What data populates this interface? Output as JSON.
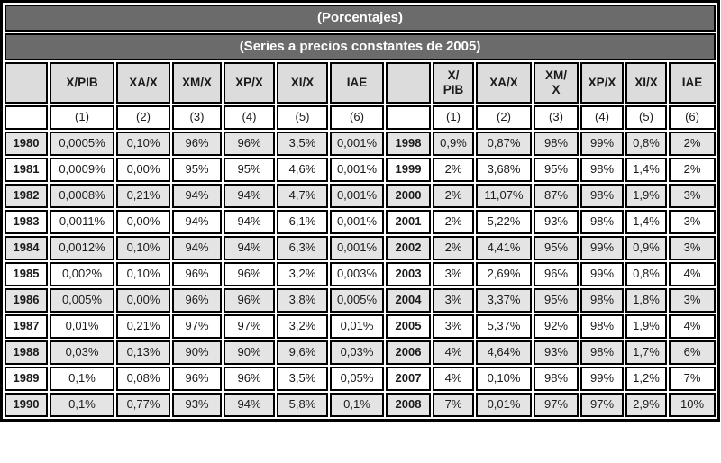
{
  "table": {
    "title_band_1": "(Porcentajes)",
    "title_band_2": "(Series a precios constantes de 2005)",
    "left_columns": [
      "X/PIB",
      "XA/X",
      "XM/X",
      "XP/X",
      "XI/X",
      "IAE"
    ],
    "right_columns": [
      "X/\nPIB",
      "XA/X",
      "XM/\nX",
      "XP/X",
      "XI/X",
      "IAE"
    ],
    "subheader": [
      "(1)",
      "(2)",
      "(3)",
      "(4)",
      "(5)",
      "(6)"
    ],
    "left_rows": [
      {
        "year": "1980",
        "values": [
          "0,0005%",
          "0,10%",
          "96%",
          "96%",
          "3,5%",
          "0,001%"
        ]
      },
      {
        "year": "1981",
        "values": [
          "0,0009%",
          "0,00%",
          "95%",
          "95%",
          "4,6%",
          "0,001%"
        ]
      },
      {
        "year": "1982",
        "values": [
          "0,0008%",
          "0,21%",
          "94%",
          "94%",
          "4,7%",
          "0,001%"
        ]
      },
      {
        "year": "1983",
        "values": [
          "0,0011%",
          "0,00%",
          "94%",
          "94%",
          "6,1%",
          "0,001%"
        ]
      },
      {
        "year": "1984",
        "values": [
          "0,0012%",
          "0,10%",
          "94%",
          "94%",
          "6,3%",
          "0,001%"
        ]
      },
      {
        "year": "1985",
        "values": [
          "0,002%",
          "0,10%",
          "96%",
          "96%",
          "3,2%",
          "0,003%"
        ]
      },
      {
        "year": "1986",
        "values": [
          "0,005%",
          "0,00%",
          "96%",
          "96%",
          "3,8%",
          "0,005%"
        ]
      },
      {
        "year": "1987",
        "values": [
          "0,01%",
          "0,21%",
          "97%",
          "97%",
          "3,2%",
          "0,01%"
        ]
      },
      {
        "year": "1988",
        "values": [
          "0,03%",
          "0,13%",
          "90%",
          "90%",
          "9,6%",
          "0,03%"
        ]
      },
      {
        "year": "1989",
        "values": [
          "0,1%",
          "0,08%",
          "96%",
          "96%",
          "3,5%",
          "0,05%"
        ]
      },
      {
        "year": "1990",
        "values": [
          "0,1%",
          "0,77%",
          "93%",
          "94%",
          "5,8%",
          "0,1%"
        ]
      }
    ],
    "right_rows": [
      {
        "year": "1998",
        "values": [
          "0,9%",
          "0,87%",
          "98%",
          "99%",
          "0,8%",
          "2%"
        ]
      },
      {
        "year": "1999",
        "values": [
          "2%",
          "3,68%",
          "95%",
          "98%",
          "1,4%",
          "2%"
        ]
      },
      {
        "year": "2000",
        "values": [
          "2%",
          "11,07%",
          "87%",
          "98%",
          "1,9%",
          "3%"
        ]
      },
      {
        "year": "2001",
        "values": [
          "2%",
          "5,22%",
          "93%",
          "98%",
          "1,4%",
          "3%"
        ]
      },
      {
        "year": "2002",
        "values": [
          "2%",
          "4,41%",
          "95%",
          "99%",
          "0,9%",
          "3%"
        ]
      },
      {
        "year": "2003",
        "values": [
          "3%",
          "2,69%",
          "96%",
          "99%",
          "0,8%",
          "4%"
        ]
      },
      {
        "year": "2004",
        "values": [
          "3%",
          "3,37%",
          "95%",
          "98%",
          "1,8%",
          "3%"
        ]
      },
      {
        "year": "2005",
        "values": [
          "3%",
          "5,37%",
          "92%",
          "98%",
          "1,9%",
          "4%"
        ]
      },
      {
        "year": "2006",
        "values": [
          "4%",
          "4,64%",
          "93%",
          "98%",
          "1,7%",
          "6%"
        ]
      },
      {
        "year": "2007",
        "values": [
          "4%",
          "0,10%",
          "98%",
          "99%",
          "1,2%",
          "7%"
        ]
      },
      {
        "year": "2008",
        "values": [
          "7%",
          "0,01%",
          "97%",
          "97%",
          "2,9%",
          "10%"
        ]
      }
    ],
    "colors": {
      "band_bg": "#6b6b6b",
      "band_text": "#ffffff",
      "header_bg": "#dcdcdc",
      "stripe_bg": "#e4e4e4",
      "border": "#000000"
    }
  }
}
